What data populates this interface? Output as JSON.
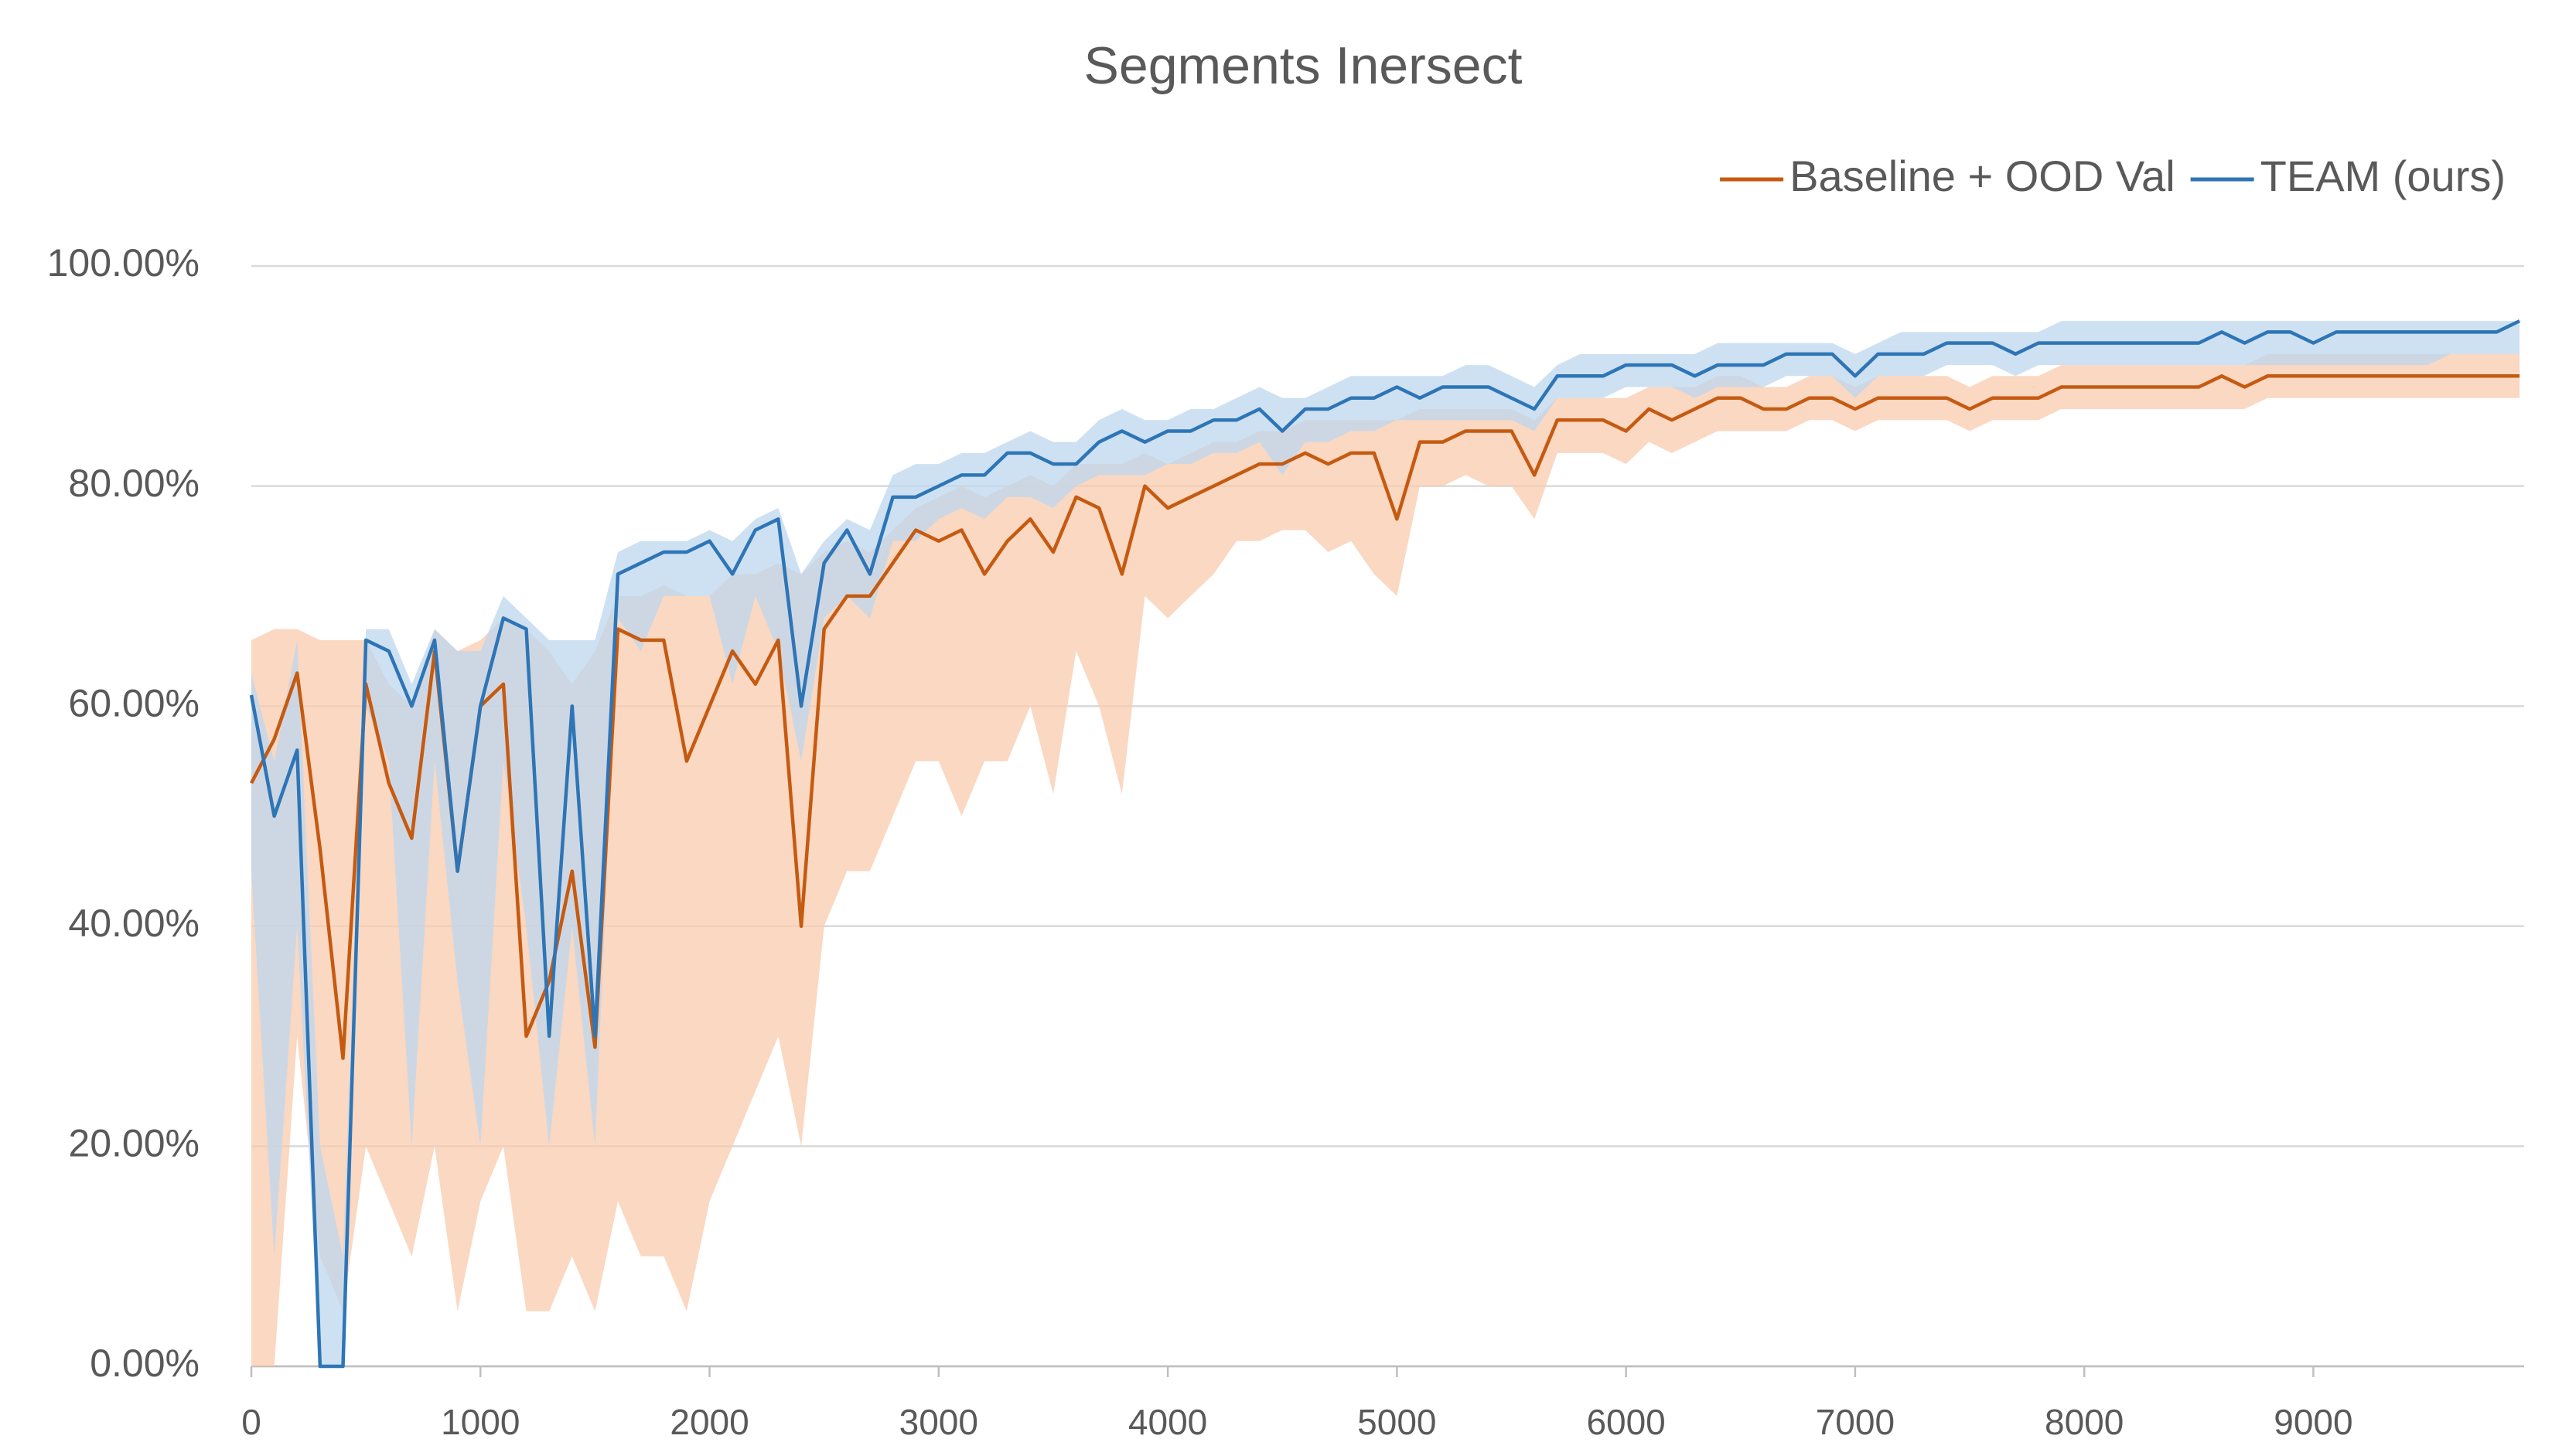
{
  "chart_data": {
    "type": "line",
    "title": "Segments Inersect",
    "x": [
      0,
      100,
      200,
      300,
      400,
      500,
      600,
      700,
      800,
      900,
      1000,
      1100,
      1200,
      1300,
      1400,
      1500,
      1600,
      1700,
      1800,
      1900,
      2000,
      2100,
      2200,
      2300,
      2400,
      2500,
      2600,
      2700,
      2800,
      2900,
      3000,
      3100,
      3200,
      3300,
      3400,
      3500,
      3600,
      3700,
      3800,
      3900,
      4000,
      4100,
      4200,
      4300,
      4400,
      4500,
      4600,
      4700,
      4800,
      4900,
      5000,
      5100,
      5200,
      5300,
      5400,
      5500,
      5600,
      5700,
      5800,
      5900,
      6000,
      6100,
      6200,
      6300,
      6400,
      6500,
      6600,
      6700,
      6800,
      6900,
      7000,
      7100,
      7200,
      7300,
      7400,
      7500,
      7600,
      7700,
      7800,
      7900,
      8000,
      8100,
      8200,
      8300,
      8400,
      8500,
      8600,
      8700,
      8800,
      8900,
      9000,
      9100,
      9200,
      9300,
      9400,
      9500,
      9600,
      9700,
      9800,
      9900
    ],
    "series": [
      {
        "name": "Baseline + OOD Val",
        "color": "#c55a11",
        "band_color": "#f8cbad",
        "values": [
          53,
          57,
          63,
          47,
          28,
          62,
          53,
          48,
          65,
          45,
          60,
          62,
          30,
          35,
          45,
          29,
          67,
          66,
          66,
          55,
          60,
          65,
          62,
          66,
          40,
          67,
          70,
          70,
          73,
          76,
          75,
          76,
          72,
          75,
          77,
          74,
          79,
          78,
          72,
          80,
          78,
          79,
          80,
          81,
          82,
          82,
          83,
          82,
          83,
          83,
          77,
          84,
          84,
          85,
          85,
          85,
          81,
          86,
          86,
          86,
          85,
          87,
          86,
          87,
          88,
          88,
          87,
          87,
          88,
          88,
          87,
          88,
          88,
          88,
          88,
          87,
          88,
          88,
          88,
          89,
          89,
          89,
          89,
          89,
          89,
          89,
          90,
          89,
          90,
          90,
          90,
          90,
          90,
          90,
          90,
          90,
          90,
          90,
          90,
          90
        ],
        "lower": [
          0,
          0,
          30,
          10,
          5,
          20,
          15,
          10,
          20,
          5,
          15,
          20,
          5,
          5,
          10,
          5,
          15,
          10,
          10,
          5,
          15,
          20,
          25,
          30,
          20,
          40,
          45,
          45,
          50,
          55,
          55,
          50,
          55,
          55,
          60,
          52,
          65,
          60,
          52,
          70,
          68,
          70,
          72,
          75,
          75,
          76,
          76,
          74,
          75,
          72,
          70,
          80,
          80,
          81,
          80,
          80,
          77,
          83,
          83,
          83,
          82,
          84,
          83,
          84,
          85,
          85,
          85,
          85,
          86,
          86,
          85,
          86,
          86,
          86,
          86,
          85,
          86,
          86,
          86,
          87,
          87,
          87,
          87,
          87,
          87,
          87,
          87,
          87,
          88,
          88,
          88,
          88,
          88,
          88,
          88,
          88,
          88,
          88,
          88,
          88
        ],
        "upper": [
          66,
          67,
          67,
          66,
          66,
          66,
          62,
          60,
          67,
          65,
          66,
          68,
          67,
          65,
          62,
          65,
          70,
          70,
          71,
          70,
          70,
          72,
          72,
          73,
          72,
          74,
          75,
          74,
          76,
          78,
          79,
          80,
          79,
          80,
          81,
          80,
          82,
          82,
          82,
          83,
          82,
          83,
          84,
          84,
          85,
          85,
          86,
          86,
          86,
          86,
          86,
          87,
          87,
          87,
          87,
          87,
          86,
          88,
          88,
          88,
          88,
          89,
          89,
          89,
          90,
          90,
          89,
          89,
          90,
          90,
          89,
          90,
          90,
          90,
          90,
          89,
          90,
          90,
          90,
          91,
          91,
          91,
          91,
          91,
          91,
          91,
          91,
          91,
          92,
          92,
          92,
          92,
          92,
          92,
          92,
          92,
          92,
          92,
          92,
          92
        ]
      },
      {
        "name": "TEAM (ours)",
        "color": "#2e75b6",
        "band_color": "#bdd7ee",
        "values": [
          61,
          50,
          56,
          0,
          0,
          66,
          65,
          60,
          66,
          45,
          60,
          68,
          67,
          30,
          60,
          30,
          72,
          73,
          74,
          74,
          75,
          72,
          76,
          77,
          60,
          73,
          76,
          72,
          79,
          79,
          80,
          81,
          81,
          83,
          83,
          82,
          82,
          84,
          85,
          84,
          85,
          85,
          86,
          86,
          87,
          85,
          87,
          87,
          88,
          88,
          89,
          88,
          89,
          89,
          89,
          88,
          87,
          90,
          90,
          90,
          91,
          91,
          91,
          90,
          91,
          91,
          91,
          92,
          92,
          92,
          90,
          92,
          92,
          92,
          93,
          93,
          93,
          92,
          93,
          93,
          93,
          93,
          93,
          93,
          93,
          93,
          94,
          93,
          94,
          94,
          93,
          94,
          94,
          94,
          94,
          94,
          94,
          94,
          94,
          95
        ],
        "lower": [
          45,
          10,
          40,
          0,
          0,
          60,
          55,
          20,
          55,
          35,
          20,
          55,
          40,
          20,
          40,
          20,
          68,
          65,
          70,
          70,
          70,
          62,
          70,
          65,
          55,
          68,
          70,
          68,
          75,
          75,
          77,
          78,
          77,
          79,
          79,
          78,
          80,
          81,
          81,
          81,
          82,
          82,
          83,
          83,
          84,
          81,
          84,
          84,
          85,
          85,
          86,
          86,
          86,
          86,
          86,
          86,
          85,
          88,
          88,
          88,
          89,
          89,
          89,
          88,
          89,
          89,
          89,
          90,
          90,
          90,
          88,
          90,
          90,
          90,
          91,
          91,
          91,
          90,
          91,
          91,
          91,
          91,
          91,
          91,
          91,
          91,
          91,
          91,
          91,
          91,
          91,
          91,
          91,
          91,
          91,
          91,
          92,
          92,
          92,
          92
        ],
        "upper": [
          63,
          55,
          66,
          20,
          10,
          67,
          67,
          62,
          67,
          65,
          65,
          70,
          68,
          66,
          66,
          66,
          74,
          75,
          75,
          75,
          76,
          75,
          77,
          78,
          72,
          75,
          77,
          76,
          81,
          82,
          82,
          83,
          83,
          84,
          85,
          84,
          84,
          86,
          87,
          86,
          86,
          87,
          87,
          88,
          89,
          88,
          88,
          89,
          90,
          90,
          90,
          90,
          90,
          91,
          91,
          90,
          89,
          91,
          92,
          92,
          92,
          92,
          92,
          92,
          93,
          93,
          93,
          93,
          93,
          93,
          92,
          93,
          94,
          94,
          94,
          94,
          94,
          94,
          94,
          95,
          95,
          95,
          95,
          95,
          95,
          95,
          95,
          95,
          95,
          95,
          95,
          95,
          95,
          95,
          95,
          95,
          95,
          95,
          95,
          95
        ]
      }
    ],
    "xlim": [
      0,
      9920
    ],
    "xticks": [
      0,
      1000,
      2000,
      3000,
      4000,
      5000,
      6000,
      7000,
      8000,
      9000
    ],
    "ylim": [
      0,
      100
    ],
    "yticks": [
      {
        "value": 0,
        "label": "0.00%"
      },
      {
        "value": 20,
        "label": "20.00%"
      },
      {
        "value": 40,
        "label": "40.00%"
      },
      {
        "value": 60,
        "label": "60.00%"
      },
      {
        "value": 80,
        "label": "80.00%"
      },
      {
        "value": 100,
        "label": "100.00%"
      }
    ],
    "grid": true,
    "legend": "top-right"
  }
}
